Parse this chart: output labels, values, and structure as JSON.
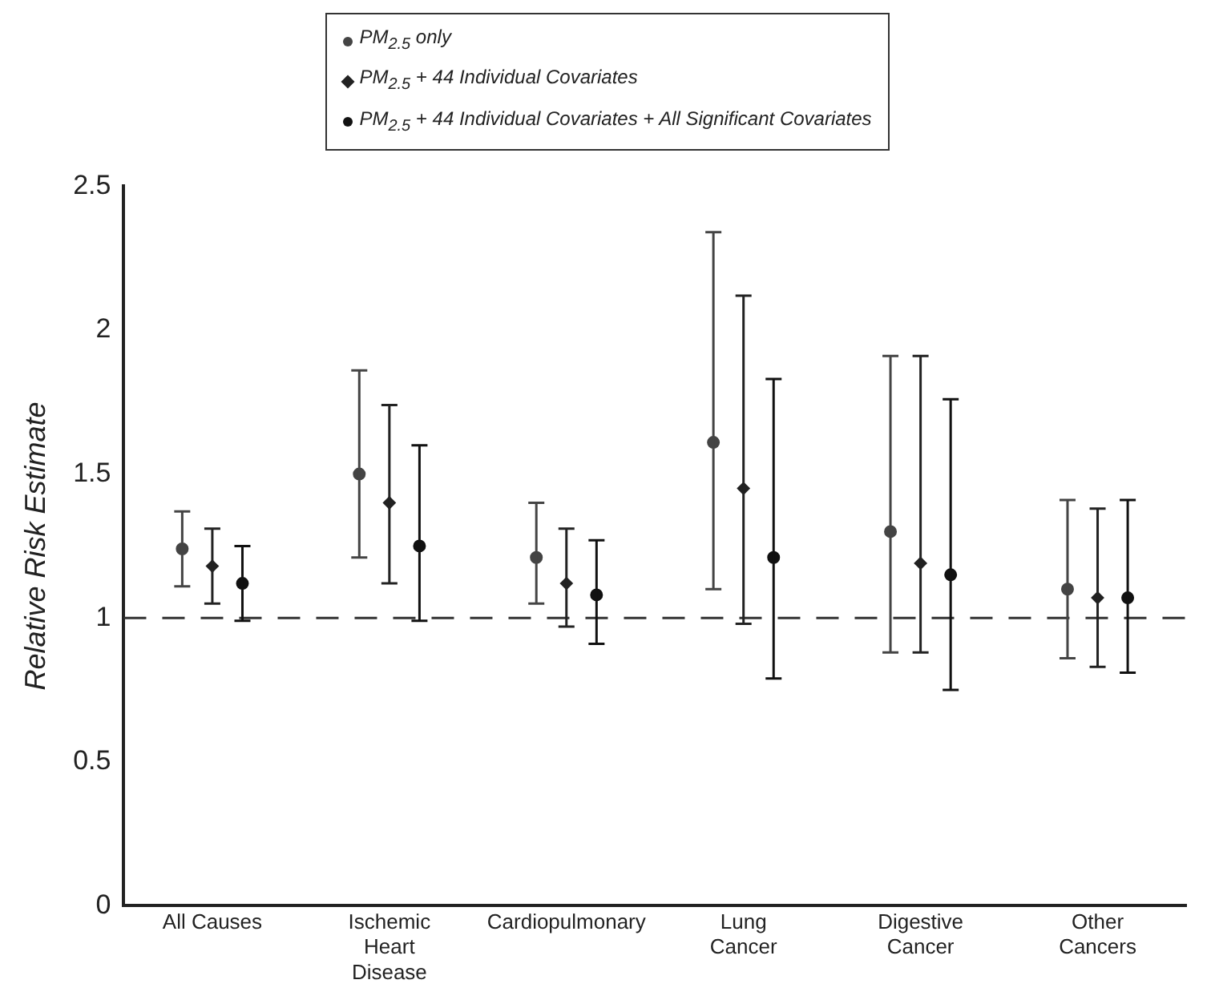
{
  "chart_data": {
    "type": "scatter",
    "ylabel": "Relative Risk Estimate",
    "categories": [
      "All Causes",
      "Ischemic Heart Disease",
      "Cardiopulmonary",
      "Lung Cancer",
      "Digestive Cancer",
      "Other Cancers"
    ],
    "series": [
      {
        "name": "PM$_{2.5}$ only",
        "color": "#444444",
        "marker": "circle",
        "values": [
          1.24,
          1.5,
          1.21,
          1.61,
          1.3,
          1.1
        ],
        "errors": [
          [
            1.11,
            1.37
          ],
          [
            1.21,
            1.86
          ],
          [
            1.05,
            1.4
          ],
          [
            1.1,
            2.34
          ],
          [
            0.88,
            1.91
          ],
          [
            0.86,
            1.41
          ]
        ]
      },
      {
        "name": "PM$_{2.5}$ + 44 Individual Covariates",
        "color": "#222222",
        "marker": "diamond",
        "values": [
          1.18,
          1.4,
          1.12,
          1.45,
          1.19,
          1.07
        ],
        "errors": [
          [
            1.05,
            1.31
          ],
          [
            1.12,
            1.74
          ],
          [
            0.97,
            1.31
          ],
          [
            0.98,
            2.12
          ],
          [
            0.88,
            1.91
          ],
          [
            0.83,
            1.38
          ]
        ]
      },
      {
        "name": "PM$_{2.5}$ + 44 Individual Covariates + All Significant Covariates",
        "color": "#111111",
        "marker": "circle",
        "values": [
          1.12,
          1.25,
          1.08,
          1.21,
          1.15,
          1.07
        ],
        "errors": [
          [
            0.99,
            1.25
          ],
          [
            0.99,
            1.6
          ],
          [
            0.91,
            1.27
          ],
          [
            0.79,
            1.83
          ],
          [
            0.75,
            1.76
          ],
          [
            0.81,
            1.41
          ]
        ]
      }
    ],
    "ylim": [
      0,
      2.5
    ],
    "yticks": [
      0,
      0.5,
      1,
      1.5,
      2,
      2.5
    ],
    "grid": false,
    "legend": "top",
    "ref_lines": [
      {
        "axis": "y",
        "value": 1,
        "line_style": "dashed",
        "color": "#333333"
      }
    ]
  }
}
